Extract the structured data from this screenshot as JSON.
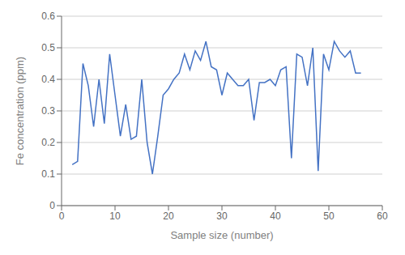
{
  "chart_data": {
    "type": "line",
    "xlabel": "Sample size (number)",
    "ylabel": "Fe concentration (ppm)",
    "x": [
      2,
      3,
      4,
      5,
      6,
      7,
      8,
      9,
      10,
      11,
      12,
      13,
      14,
      15,
      16,
      17,
      18,
      19,
      20,
      21,
      22,
      23,
      24,
      25,
      26,
      27,
      28,
      29,
      30,
      31,
      32,
      33,
      34,
      35,
      36,
      37,
      38,
      39,
      40,
      41,
      42,
      43,
      44,
      45,
      46,
      47,
      48,
      49,
      50,
      51,
      52,
      53,
      54,
      55,
      56
    ],
    "values": [
      0.13,
      0.14,
      0.45,
      0.38,
      0.25,
      0.4,
      0.26,
      0.48,
      0.35,
      0.22,
      0.32,
      0.21,
      0.22,
      0.4,
      0.2,
      0.1,
      0.22,
      0.35,
      0.37,
      0.4,
      0.42,
      0.48,
      0.43,
      0.49,
      0.46,
      0.52,
      0.44,
      0.43,
      0.35,
      0.42,
      0.4,
      0.38,
      0.38,
      0.4,
      0.27,
      0.39,
      0.39,
      0.4,
      0.38,
      0.43,
      0.44,
      0.15,
      0.48,
      0.47,
      0.38,
      0.5,
      0.11,
      0.48,
      0.43,
      0.52,
      0.49,
      0.47,
      0.49,
      0.42,
      0.42
    ],
    "color": "#4472C4",
    "xlim": [
      0,
      60
    ],
    "ylim": [
      0,
      0.6
    ],
    "xticks": [
      0,
      10,
      20,
      30,
      40,
      50,
      60
    ],
    "yticks": [
      0,
      0.1,
      0.2,
      0.3,
      0.4,
      0.5,
      0.6
    ],
    "grid": "y"
  }
}
